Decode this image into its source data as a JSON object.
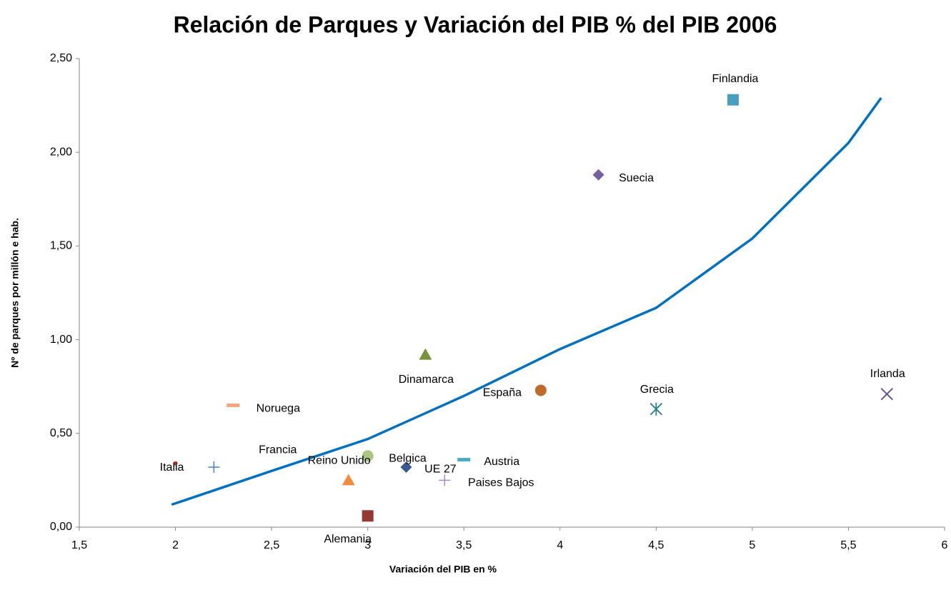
{
  "chart_data": {
    "type": "scatter",
    "title": "Relación de Parques y Variación del PIB % del PIB 2006",
    "x_label": "Variación del PIB en %",
    "y_label": "Nº de parques por millón e hab.",
    "xlim": [
      1.5,
      6
    ],
    "ylim": [
      0,
      2.5
    ],
    "xticks": [
      {
        "value": 1.5,
        "label": "1,5"
      },
      2,
      {
        "value": 2.5,
        "label": "2,5"
      },
      3,
      {
        "value": 3.5,
        "label": "3,5"
      },
      4,
      {
        "value": 4.5,
        "label": "4,5"
      },
      5,
      {
        "value": 5.5,
        "label": "5,5"
      },
      6
    ],
    "yticks": [
      {
        "value": 0,
        "label": "0,00"
      },
      {
        "value": 0.5,
        "label": "0,50"
      },
      {
        "value": 1,
        "label": "1,00"
      },
      {
        "value": 1.5,
        "label": "1,50"
      },
      {
        "value": 2,
        "label": "2,00"
      },
      {
        "value": 2.5,
        "label": "2,50"
      }
    ],
    "grid": false,
    "series": [
      {
        "name": "Alemania",
        "color": "#953735",
        "marker": "square",
        "x": [
          3.0
        ],
        "values": [
          0.06
        ]
      },
      {
        "name": "Austria",
        "color": "#4bacc6",
        "marker": "dash",
        "x": [
          3.5
        ],
        "values": [
          0.36
        ]
      },
      {
        "name": "Belgica",
        "color": "#3b5a8f",
        "marker": "diamond",
        "x": [
          3.2
        ],
        "values": [
          0.32
        ]
      },
      {
        "name": "Dinamarca",
        "color": "#77933c",
        "marker": "triangle",
        "x": [
          3.3
        ],
        "values": [
          0.92
        ]
      },
      {
        "name": "España",
        "color": "#c0692b",
        "marker": "circle",
        "x": [
          3.9
        ],
        "values": [
          0.73
        ]
      },
      {
        "name": "Finlandia",
        "color": "#4a9fbd",
        "marker": "square",
        "x": [
          4.9
        ],
        "values": [
          2.28
        ]
      },
      {
        "name": "Francia",
        "color": "#f08c3c",
        "marker": "triangle",
        "x": [
          2.9
        ],
        "values": [
          0.25
        ]
      },
      {
        "name": "Grecia",
        "color": "#2c7f8f",
        "marker": "asterisk",
        "x": [
          4.5
        ],
        "values": [
          0.63
        ]
      },
      {
        "name": "Irlanda",
        "color": "#5f4b8b",
        "marker": "x",
        "x": [
          5.7
        ],
        "values": [
          0.71
        ]
      },
      {
        "name": "Italia",
        "color": "#c0392b",
        "marker": "dot",
        "x": [
          2.0
        ],
        "values": [
          0.34
        ]
      },
      {
        "name": "Noruega",
        "color": "#f4a57a",
        "marker": "dash",
        "x": [
          2.3
        ],
        "values": [
          0.65
        ]
      },
      {
        "name": "Paises Bajos",
        "color": "#a08cc8",
        "marker": "plus",
        "x": [
          3.4
        ],
        "values": [
          0.25
        ]
      },
      {
        "name": "Reino Unido",
        "color": "#a9c77e",
        "marker": "circle",
        "x": [
          3.0
        ],
        "values": [
          0.38
        ]
      },
      {
        "name": "Suecia",
        "color": "#7a5fa0",
        "marker": "diamond",
        "x": [
          4.2
        ],
        "values": [
          1.88
        ]
      },
      {
        "name": "UE 27",
        "color": "#4a7ebb",
        "marker": "plus",
        "x": [
          2.2
        ],
        "values": [
          0.32
        ]
      }
    ],
    "trendline": {
      "color": "#0070c0",
      "x": [
        1.98,
        2.5,
        3.0,
        3.5,
        4.0,
        4.5,
        5.0,
        5.5,
        5.67
      ],
      "values": [
        0.12,
        0.3,
        0.47,
        0.7,
        0.95,
        1.17,
        1.54,
        2.05,
        2.29
      ]
    }
  }
}
